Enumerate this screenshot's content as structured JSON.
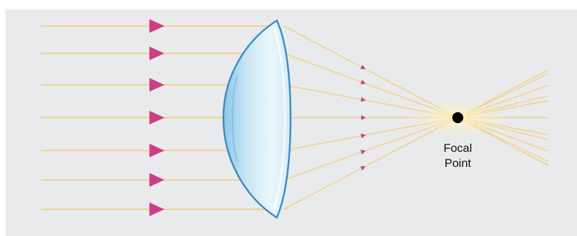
{
  "diagram": {
    "type": "converging-lens-ray-diagram",
    "incoming_ray_count": 7,
    "focal_label": {
      "line1": "Focal",
      "line2": "Point"
    },
    "colors": {
      "background": "#e9eaeb",
      "ray": "#f2d089",
      "arrow": "#cc3f86",
      "lens_edge": "#3b8bc2",
      "focal_point": "#000000"
    },
    "icons": [
      "arrow-marker-icon",
      "focal-point-dot-icon",
      "lens-icon"
    ]
  }
}
